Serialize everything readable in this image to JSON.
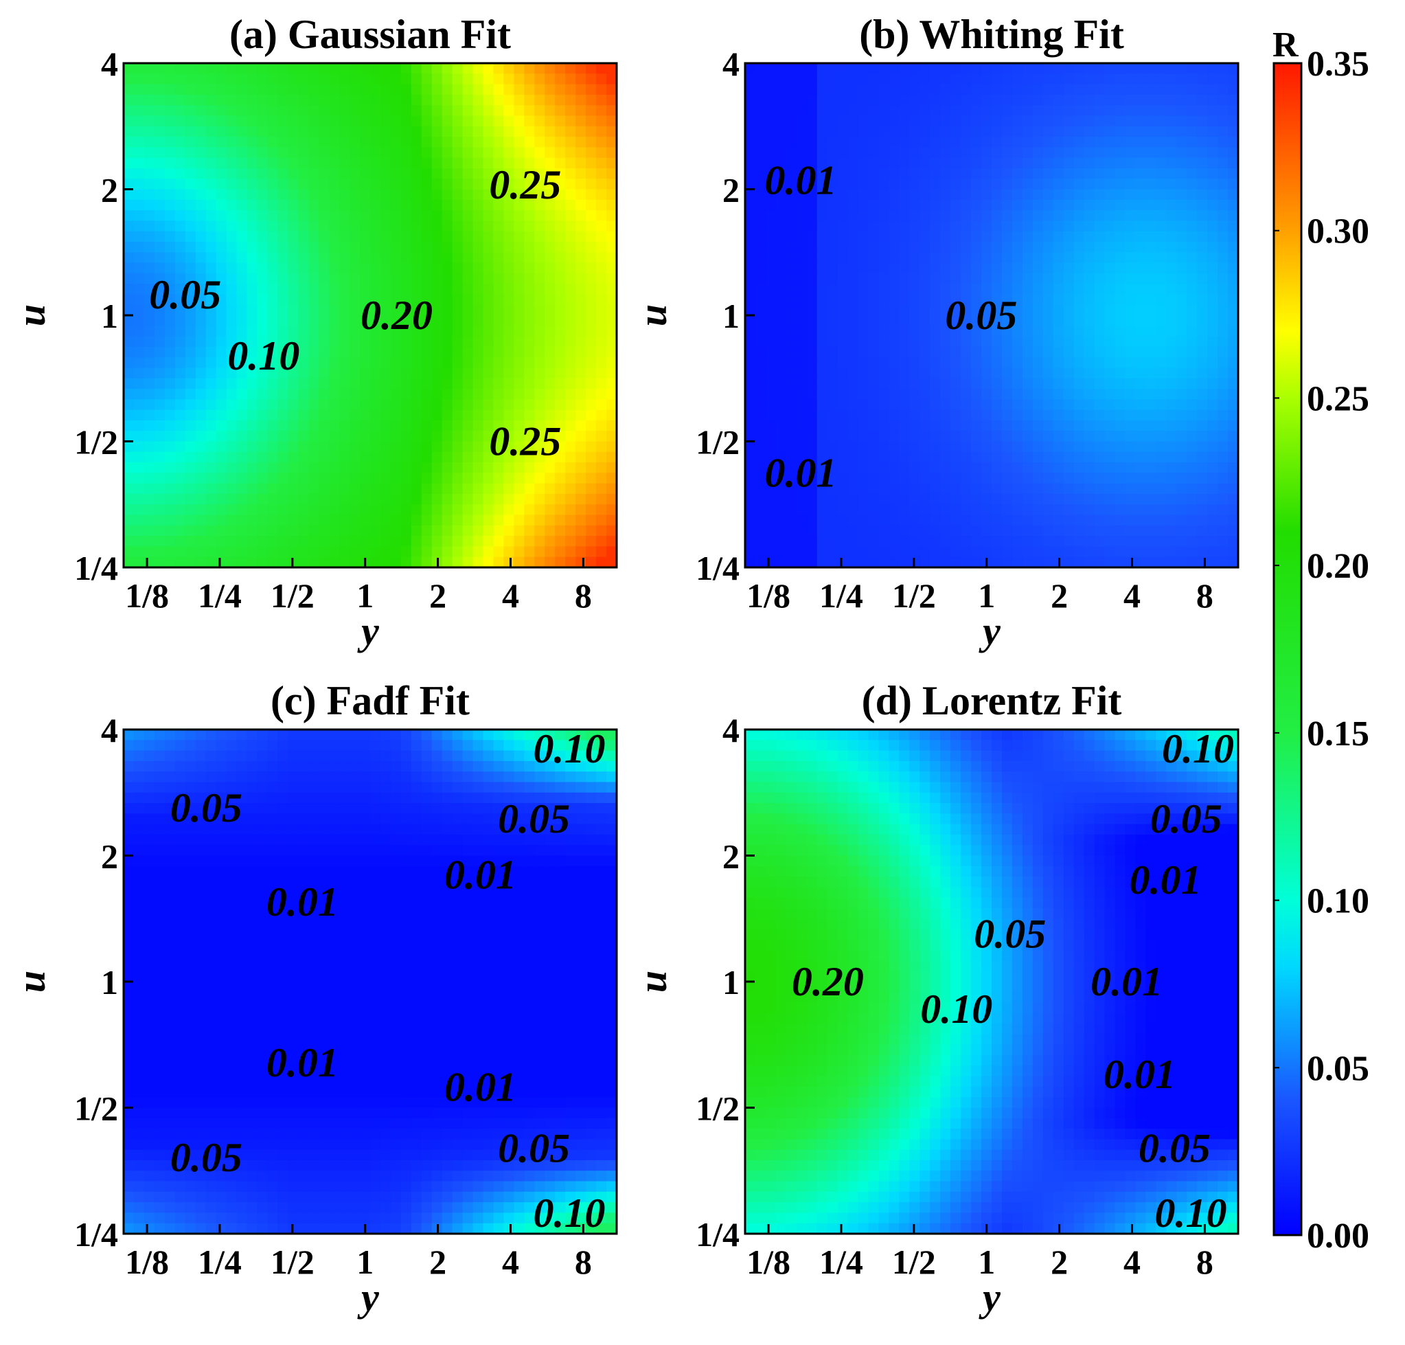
{
  "colorbar": {
    "title": "R",
    "range": [
      0,
      0.35
    ],
    "ticks": [
      "0.00",
      "0.05",
      "0.10",
      "0.15",
      "0.20",
      "0.25",
      "0.30",
      "0.35"
    ],
    "stops": [
      {
        "v": 0.0,
        "c": "#0000ff"
      },
      {
        "v": 0.04,
        "c": "#1a55ff"
      },
      {
        "v": 0.08,
        "c": "#00d8ff"
      },
      {
        "v": 0.1,
        "c": "#00ffd8"
      },
      {
        "v": 0.15,
        "c": "#22ee44"
      },
      {
        "v": 0.21,
        "c": "#22dd00"
      },
      {
        "v": 0.25,
        "c": "#aaff00"
      },
      {
        "v": 0.27,
        "c": "#ffff00"
      },
      {
        "v": 0.3,
        "c": "#ffa000"
      },
      {
        "v": 0.35,
        "c": "#ff1800"
      }
    ]
  },
  "chart_data": [
    {
      "type": "heatmap",
      "title": "(a) Gaussian Fit",
      "xlabel": "y",
      "ylabel": "u",
      "x_ticks": [
        "1/8",
        "1/4",
        "1/2",
        "1",
        "2",
        "4",
        "8"
      ],
      "y_ticks": [
        "1/4",
        "1/2",
        "1",
        "2",
        "4"
      ],
      "xlim": [
        0.1,
        11
      ],
      "ylim": [
        0.25,
        4
      ],
      "contour_labels": [
        {
          "text": "0.05",
          "x": 0.18,
          "y": 1.12
        },
        {
          "text": "0.10",
          "x": 0.38,
          "y": 0.8
        },
        {
          "text": "0.20",
          "x": 1.35,
          "y": 1.0
        },
        {
          "text": "0.25",
          "x": 4.6,
          "y": 2.05
        },
        {
          "text": "0.25",
          "x": 4.6,
          "y": 0.5
        }
      ]
    },
    {
      "type": "heatmap",
      "title": "(b) Whiting Fit",
      "xlabel": "y",
      "ylabel": "u",
      "x_ticks": [
        "1/8",
        "1/4",
        "1/2",
        "1",
        "2",
        "4",
        "8"
      ],
      "y_ticks": [
        "1/4",
        "1/2",
        "1",
        "2",
        "4"
      ],
      "xlim": [
        0.1,
        11
      ],
      "ylim": [
        0.25,
        4
      ],
      "contour_labels": [
        {
          "text": "0.01",
          "x": 0.17,
          "y": 2.1
        },
        {
          "text": "0.05",
          "x": 0.95,
          "y": 1.0
        },
        {
          "text": "0.01",
          "x": 0.17,
          "y": 0.42
        }
      ]
    },
    {
      "type": "heatmap",
      "title": "(c) Fadf Fit",
      "xlabel": "y",
      "ylabel": "u",
      "x_ticks": [
        "1/8",
        "1/4",
        "1/2",
        "1",
        "2",
        "4",
        "8"
      ],
      "y_ticks": [
        "1/4",
        "1/2",
        "1",
        "2",
        "4"
      ],
      "xlim": [
        0.1,
        11
      ],
      "ylim": [
        0.25,
        4
      ],
      "contour_labels": [
        {
          "text": "0.05",
          "x": 0.22,
          "y": 2.6
        },
        {
          "text": "0.01",
          "x": 0.55,
          "y": 1.55
        },
        {
          "text": "0.10",
          "x": 7.0,
          "y": 3.6
        },
        {
          "text": "0.05",
          "x": 5.0,
          "y": 2.45
        },
        {
          "text": "0.01",
          "x": 3.0,
          "y": 1.8
        },
        {
          "text": "0.01",
          "x": 0.55,
          "y": 0.64
        },
        {
          "text": "0.01",
          "x": 3.0,
          "y": 0.56
        },
        {
          "text": "0.05",
          "x": 0.22,
          "y": 0.38
        },
        {
          "text": "0.05",
          "x": 5.0,
          "y": 0.4
        },
        {
          "text": "0.10",
          "x": 7.0,
          "y": 0.28
        }
      ]
    },
    {
      "type": "heatmap",
      "title": "(d) Lorentz Fit",
      "xlabel": "y",
      "ylabel": "u",
      "x_ticks": [
        "1/8",
        "1/4",
        "1/2",
        "1",
        "2",
        "4",
        "8"
      ],
      "y_ticks": [
        "1/4",
        "1/2",
        "1",
        "2",
        "4"
      ],
      "xlim": [
        0.1,
        11
      ],
      "ylim": [
        0.25,
        4
      ],
      "contour_labels": [
        {
          "text": "0.20",
          "x": 0.22,
          "y": 1.0
        },
        {
          "text": "0.10",
          "x": 0.75,
          "y": 0.86
        },
        {
          "text": "0.05",
          "x": 1.25,
          "y": 1.3
        },
        {
          "text": "0.01",
          "x": 3.8,
          "y": 1.0
        },
        {
          "text": "0.10",
          "x": 7.5,
          "y": 3.6
        },
        {
          "text": "0.05",
          "x": 6.7,
          "y": 2.45
        },
        {
          "text": "0.01",
          "x": 5.5,
          "y": 1.75
        },
        {
          "text": "0.01",
          "x": 4.3,
          "y": 0.6
        },
        {
          "text": "0.05",
          "x": 6.0,
          "y": 0.4
        },
        {
          "text": "0.10",
          "x": 7.0,
          "y": 0.28
        }
      ]
    }
  ]
}
